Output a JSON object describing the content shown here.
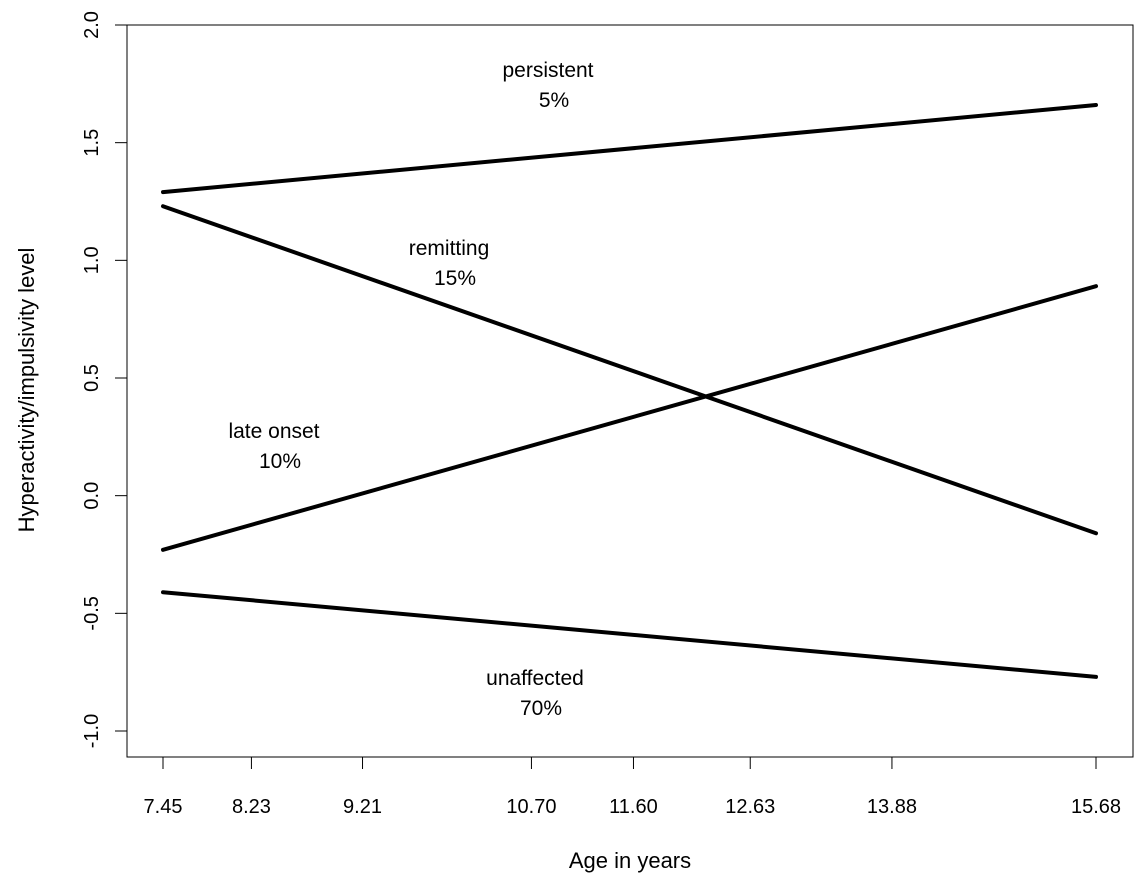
{
  "chart_data": {
    "type": "line",
    "xlabel": "Age in years",
    "ylabel": "Hyperactivity/impulsivity level",
    "xlim": [
      7.45,
      15.68
    ],
    "ylim": [
      -1.0,
      2.0
    ],
    "x_ticks": [
      "7.45",
      "8.23",
      "9.21",
      "10.70",
      "11.60",
      "12.63",
      "13.88",
      "15.68"
    ],
    "y_ticks": [
      "-1.0",
      "-0.5",
      "0.0",
      "0.5",
      "1.0",
      "1.5",
      "2.0"
    ],
    "series": [
      {
        "name": "persistent",
        "percent": "5%",
        "x": [
          7.45,
          15.68
        ],
        "y": [
          1.29,
          1.66
        ]
      },
      {
        "name": "remitting",
        "percent": "15%",
        "x": [
          7.45,
          15.68
        ],
        "y": [
          1.23,
          -0.16
        ]
      },
      {
        "name": "late onset",
        "percent": "10%",
        "x": [
          7.45,
          15.68
        ],
        "y": [
          -0.23,
          0.89
        ]
      },
      {
        "name": "unaffected",
        "percent": "70%",
        "x": [
          7.45,
          15.68
        ],
        "y": [
          -0.41,
          -0.77
        ]
      }
    ]
  }
}
